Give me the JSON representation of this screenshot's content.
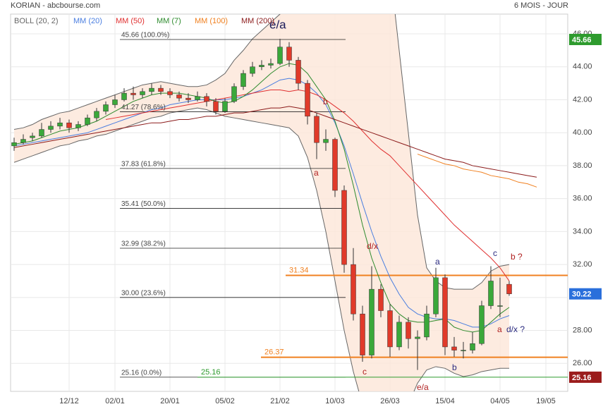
{
  "chart_data": {
    "type": "candlestick",
    "title": "KORIAN - abcbourse.com",
    "subtitle": "6 MOIS - JOUR",
    "categories": [
      null,
      null,
      null,
      null,
      null,
      null,
      "12/12",
      null,
      null,
      null,
      null,
      "02/01",
      null,
      null,
      null,
      null,
      null,
      "20/01",
      null,
      null,
      null,
      null,
      null,
      "05/02",
      null,
      null,
      null,
      null,
      null,
      "21/02",
      null,
      null,
      null,
      null,
      null,
      "10/03",
      null,
      null,
      null,
      null,
      null,
      "26/03",
      null,
      null,
      null,
      null,
      null,
      "15/04",
      null,
      null,
      null,
      null,
      null,
      "04/05",
      null,
      null,
      null,
      null,
      "19/05",
      null,
      null
    ],
    "ohlc": [
      [
        39.2,
        39.7,
        38.9,
        39.4
      ],
      [
        39.4,
        39.9,
        39.3,
        39.6
      ],
      [
        39.7,
        40.0,
        39.5,
        39.8
      ],
      [
        39.8,
        40.6,
        39.7,
        40.2
      ],
      [
        40.2,
        40.7,
        40.0,
        40.4
      ],
      [
        40.4,
        40.9,
        40.2,
        40.6
      ],
      [
        40.6,
        40.8,
        40.0,
        40.3
      ],
      [
        40.3,
        40.7,
        40.1,
        40.5
      ],
      [
        40.5,
        41.1,
        40.4,
        40.9
      ],
      [
        40.9,
        41.5,
        40.7,
        41.3
      ],
      [
        41.3,
        41.9,
        41.1,
        41.7
      ],
      [
        41.7,
        42.3,
        41.5,
        42.0
      ],
      [
        42.0,
        42.7,
        41.9,
        42.4
      ],
      [
        42.4,
        42.8,
        42.0,
        42.3
      ],
      [
        42.3,
        42.7,
        42.1,
        42.5
      ],
      [
        42.5,
        43.0,
        42.3,
        42.7
      ],
      [
        42.7,
        42.9,
        42.3,
        42.5
      ],
      [
        42.5,
        42.7,
        42.1,
        42.3
      ],
      [
        42.3,
        42.5,
        41.9,
        42.1
      ],
      [
        42.1,
        42.4,
        41.8,
        42.0
      ],
      [
        42.0,
        42.5,
        41.9,
        42.2
      ],
      [
        42.2,
        42.4,
        41.6,
        41.9
      ],
      [
        41.9,
        42.1,
        41.1,
        41.3
      ],
      [
        41.3,
        42.1,
        41.2,
        41.9
      ],
      [
        41.9,
        43.0,
        41.8,
        42.8
      ],
      [
        42.8,
        43.8,
        42.6,
        43.6
      ],
      [
        43.6,
        44.3,
        43.4,
        44.0
      ],
      [
        44.0,
        44.4,
        43.8,
        44.1
      ],
      [
        44.1,
        44.5,
        43.9,
        44.2
      ],
      [
        44.2,
        45.7,
        44.1,
        45.2
      ],
      [
        45.2,
        45.5,
        44.0,
        44.4
      ],
      [
        44.4,
        44.6,
        42.6,
        43.0
      ],
      [
        43.0,
        43.2,
        40.5,
        41.0
      ],
      [
        41.0,
        41.2,
        38.4,
        39.4
      ],
      [
        39.4,
        40.2,
        38.9,
        39.6
      ],
      [
        39.6,
        39.7,
        36.1,
        36.5
      ],
      [
        36.5,
        36.8,
        31.5,
        32.0
      ],
      [
        32.0,
        33.0,
        28.6,
        29.0
      ],
      [
        29.0,
        29.5,
        26.1,
        26.5
      ],
      [
        26.5,
        31.9,
        26.3,
        30.5
      ],
      [
        30.5,
        30.8,
        28.8,
        29.2
      ],
      [
        29.2,
        29.6,
        26.4,
        27.0
      ],
      [
        27.0,
        28.9,
        26.8,
        28.5
      ],
      [
        28.5,
        28.8,
        26.9,
        27.5
      ],
      [
        27.5,
        28.0,
        25.6,
        27.6
      ],
      [
        27.6,
        29.5,
        27.4,
        29.0
      ],
      [
        29.0,
        31.8,
        28.8,
        31.2
      ],
      [
        31.2,
        31.4,
        26.5,
        27.0
      ],
      [
        27.0,
        27.6,
        26.4,
        26.8
      ],
      [
        26.8,
        27.3,
        26.3,
        26.8
      ],
      [
        26.8,
        27.9,
        26.6,
        27.2
      ],
      [
        27.2,
        29.8,
        27.1,
        29.5
      ],
      [
        29.5,
        31.9,
        29.3,
        31.0
      ],
      [
        29.5,
        31.2,
        28.8,
        29.5
      ],
      [
        30.8,
        31.0,
        30.1,
        30.22
      ],
      null,
      null,
      null,
      null,
      null,
      null
    ],
    "candle_colors": {
      "up": "#3aa83a",
      "down": "#e03a2a"
    },
    "bollinger": {
      "name": "BOLL (20, 2)",
      "color": "#666666",
      "fill": "#fde6d8",
      "upper": [
        40.2,
        40.3,
        40.5,
        40.8,
        41.0,
        41.2,
        41.3,
        41.5,
        41.7,
        41.9,
        42.1,
        42.3,
        42.5,
        42.7,
        42.9,
        43.0,
        43.1,
        43.0,
        42.9,
        42.8,
        42.8,
        42.9,
        43.2,
        43.6,
        44.4,
        45.0,
        45.7,
        46.2,
        46.7,
        47.2,
        48,
        48.8,
        49.5,
        50,
        51,
        52,
        52.5,
        52.5,
        52,
        51.5,
        51,
        50,
        45,
        40,
        35,
        31.8,
        31.0,
        30.6,
        30.5,
        30.5,
        30.5,
        30.9,
        31.6,
        31.9,
        32.0,
        null,
        null,
        null,
        null,
        null,
        null
      ],
      "lower": [
        38.2,
        38.4,
        38.6,
        38.8,
        39.0,
        39.2,
        39.3,
        39.5,
        39.6,
        39.8,
        39.9,
        40.1,
        40.3,
        40.5,
        40.7,
        40.9,
        41.0,
        41.2,
        41.3,
        41.4,
        41.5,
        41.4,
        41.2,
        41.0,
        40.9,
        40.8,
        40.7,
        40.6,
        40.5,
        40.4,
        40.3,
        39.8,
        38.5,
        36.5,
        34,
        31,
        28,
        25.5,
        23.5,
        22.5,
        22,
        22,
        22.5,
        23.5,
        24.8,
        25.6,
        25.8,
        25.7,
        25.4,
        25.2,
        25.3,
        25.5,
        25.6,
        25.7,
        25.7,
        null,
        null,
        null,
        null,
        null,
        null
      ]
    },
    "series": [
      {
        "name": "MM (20)",
        "color": "#4a7ee0",
        "values": [
          39.2,
          39.3,
          39.4,
          39.5,
          39.6,
          39.7,
          39.8,
          39.9,
          40.0,
          40.2,
          40.4,
          40.6,
          40.8,
          41.0,
          41.2,
          41.4,
          41.5,
          41.7,
          41.8,
          41.9,
          42.0,
          42.0,
          42.0,
          42.0,
          42.1,
          42.2,
          42.4,
          42.6,
          42.9,
          43.2,
          43.3,
          43.2,
          42.9,
          42.4,
          41.7,
          40.6,
          39.2,
          37.5,
          35.7,
          34.0,
          32.5,
          31.2,
          30.2,
          29.4,
          29.0,
          28.8,
          28.7,
          28.7,
          28.6,
          28.4,
          28.2,
          28.2,
          28.4,
          28.7,
          28.9,
          null,
          null,
          null,
          null,
          null,
          null
        ]
      },
      {
        "name": "MM (50)",
        "color": "#e03030",
        "values": [
          null,
          null,
          null,
          null,
          null,
          null,
          null,
          null,
          null,
          null,
          40.8,
          40.9,
          41.0,
          41.1,
          41.2,
          41.3,
          41.4,
          41.5,
          41.6,
          41.7,
          41.8,
          41.9,
          42.0,
          42.1,
          42.2,
          42.3,
          42.4,
          42.5,
          42.6,
          42.6,
          42.5,
          42.6,
          42.5,
          42.3,
          42.0,
          41.6,
          41.2,
          40.7,
          40.1,
          39.5,
          39.0,
          38.6,
          38.0,
          37.4,
          36.8,
          36.2,
          35.6,
          35.0,
          34.4,
          33.9,
          33.4,
          32.9,
          32.4,
          31.8,
          31.0,
          null,
          null,
          null,
          null,
          null,
          null
        ]
      },
      {
        "name": "MM (7)",
        "color": "#2e8b2e",
        "values": [
          39.3,
          39.4,
          39.5,
          39.7,
          39.9,
          40.1,
          40.2,
          40.3,
          40.5,
          40.7,
          41.0,
          41.3,
          41.6,
          41.9,
          42.1,
          42.3,
          42.4,
          42.4,
          42.4,
          42.3,
          42.2,
          42.1,
          41.9,
          41.8,
          41.9,
          42.2,
          42.6,
          43.1,
          43.6,
          44.0,
          44.2,
          44.1,
          43.6,
          42.8,
          42.0,
          40.7,
          39.0,
          36.8,
          34.4,
          32.4,
          30.9,
          29.6,
          29.0,
          28.6,
          28.5,
          28.5,
          28.6,
          28.7,
          28.2,
          28.0,
          27.9,
          28.0,
          28.5,
          29.0,
          29.4,
          null,
          null,
          null,
          null,
          null,
          null
        ]
      },
      {
        "name": "MM (100)",
        "color": "#f08020",
        "values": [
          null,
          null,
          null,
          null,
          null,
          null,
          null,
          null,
          null,
          null,
          null,
          null,
          null,
          null,
          null,
          null,
          null,
          null,
          null,
          null,
          null,
          null,
          null,
          null,
          null,
          null,
          null,
          null,
          null,
          null,
          null,
          null,
          null,
          null,
          null,
          null,
          null,
          null,
          null,
          null,
          null,
          null,
          null,
          null,
          38.7,
          38.5,
          38.3,
          38.1,
          38.0,
          37.8,
          37.7,
          37.6,
          37.4,
          37.3,
          37.2,
          37.0,
          36.9,
          36.7,
          null,
          null,
          null
        ]
      },
      {
        "name": "MM (200)",
        "color": "#8b1a1a",
        "values": [
          39.1,
          39.2,
          39.3,
          39.4,
          39.5,
          39.6,
          39.7,
          39.8,
          39.9,
          40.0,
          40.1,
          40.2,
          40.3,
          40.4,
          40.5,
          40.6,
          40.6,
          40.7,
          40.8,
          40.8,
          40.9,
          41.0,
          41.0,
          41.1,
          41.2,
          41.2,
          41.3,
          41.4,
          41.5,
          41.5,
          41.6,
          41.5,
          41.4,
          41.2,
          41.0,
          40.8,
          40.6,
          40.4,
          40.2,
          40.0,
          39.8,
          39.6,
          39.4,
          39.2,
          39.0,
          38.8,
          38.6,
          38.4,
          38.3,
          38.2,
          38.0,
          37.9,
          37.8,
          37.7,
          37.6,
          37.5,
          37.4,
          37.3,
          null,
          null,
          null
        ]
      }
    ],
    "ylim": [
      24.3,
      47.2
    ],
    "yticks": [
      {
        "value": 26,
        "label": "26.00"
      },
      {
        "value": 28,
        "label": "28.00"
      },
      {
        "value": 30,
        "label": "30.00"
      },
      {
        "value": 32,
        "label": "32.00"
      },
      {
        "value": 34,
        "label": "34.00"
      },
      {
        "value": 36,
        "label": "36.00"
      },
      {
        "value": 38,
        "label": "38.00"
      },
      {
        "value": 40,
        "label": "40.00"
      },
      {
        "value": 42,
        "label": "42.00"
      },
      {
        "value": 44,
        "label": "44.00"
      },
      {
        "value": 46,
        "label": "46.00"
      }
    ],
    "grid": true,
    "fibonacci": [
      {
        "value": 45.66,
        "label": "45.66  (100.0%)"
      },
      {
        "value": 41.27,
        "label": "41.27  (78.6%)"
      },
      {
        "value": 37.83,
        "label": "37.83  (61.8%)"
      },
      {
        "value": 35.41,
        "label": "35.41  (50.0%)"
      },
      {
        "value": 32.99,
        "label": "32.99  (38.2%)"
      },
      {
        "value": 30,
        "label": "30.00  (23.6%)"
      },
      {
        "value": 25.16,
        "label": "25.16  (0.0%)"
      }
    ],
    "levels": [
      {
        "value": 31.34,
        "color": "#f08020"
      },
      {
        "value": 26.37,
        "color": "#f08020"
      },
      {
        "value": 25.16,
        "color": "#2e9b2e"
      }
    ],
    "price_tags": [
      {
        "value": 45.66,
        "color": "#2e9b2e"
      },
      {
        "value": 30.22,
        "color": "#2a6fdb"
      },
      {
        "value": 25.16,
        "color": "#9b1c1c"
      }
    ],
    "annotations": [
      {
        "text": "e/a",
        "color": "#1a1a5a"
      },
      {
        "text": "b",
        "color": "#b02020"
      },
      {
        "text": "a",
        "color": "#b02020"
      },
      {
        "text": "d/x",
        "color": "#b02020"
      },
      {
        "text": "a",
        "color": "#2a2a80"
      },
      {
        "text": "c",
        "color": "#2a2a80"
      },
      {
        "text": "b ?",
        "color": "#b02020"
      },
      {
        "text": "a",
        "color": "#b02020"
      },
      {
        "text": "d/x ?",
        "color": "#2a2a80"
      },
      {
        "text": "b",
        "color": "#2a2a80"
      },
      {
        "text": "c",
        "color": "#b02020"
      },
      {
        "text": "e/a",
        "color": "#b02020"
      }
    ]
  }
}
